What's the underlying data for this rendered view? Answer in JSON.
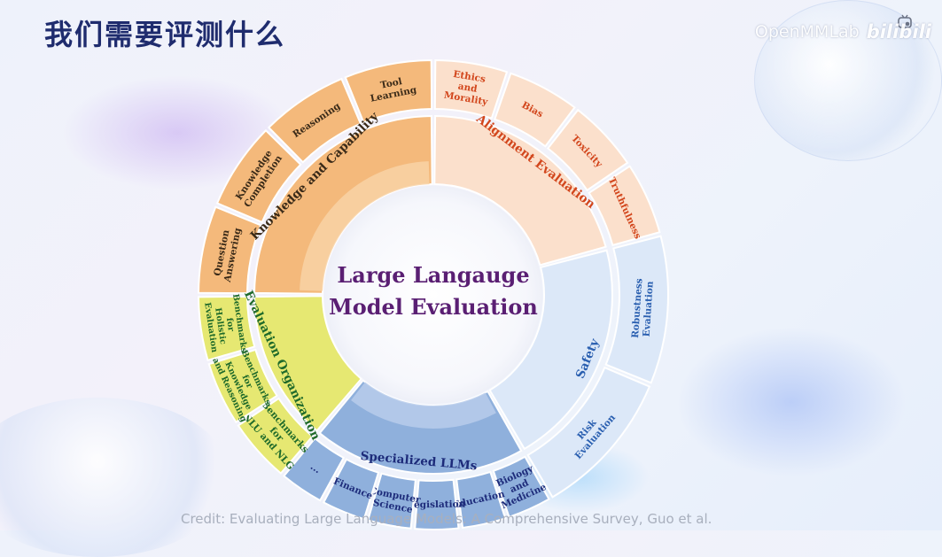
{
  "title": "我们需要评测什么",
  "watermark": {
    "org": "OpenMMLab",
    "site": "bilibili"
  },
  "credit": "Credit: Evaluating Large Language Models: A Comprehensive Survey, Guo et al.",
  "center": {
    "line1": "Large Langauge",
    "line2": "Model Evaluation"
  },
  "colors": {
    "orange": "#f4b97b",
    "orange_text": "#3a2a18",
    "peach": "#fbe0cc",
    "peach_text": "#d2461c",
    "blue_light": "#dce8f8",
    "blue_text": "#2a5fb0",
    "blue_mid": "#8fb0dc",
    "navy_text": "#1d2b7a",
    "yellow": "#e6e872",
    "green_text": "#1f6a2a",
    "center_text": "#5a1f73"
  },
  "categories": [
    {
      "id": "knowledge",
      "label": "Knowledge and Capability",
      "a0": 270,
      "a1": 360,
      "color": "#f4b97b",
      "text": "#3a2a18",
      "subs": [
        [
          "Question",
          "Answering"
        ],
        [
          "Knowledge",
          "Completion"
        ],
        [
          "Reasoning"
        ],
        [
          "Tool",
          "Learning"
        ]
      ]
    },
    {
      "id": "alignment",
      "label": "Alignment Evaluation",
      "a0": 0,
      "a1": 75,
      "color": "#fbe0cc",
      "text": "#d2461c",
      "subs": [
        [
          "Ethics",
          "and",
          "Morality"
        ],
        [
          "Bias"
        ],
        [
          "Toxicity"
        ],
        [
          "Truthfulness"
        ]
      ]
    },
    {
      "id": "safety",
      "label": "Safety",
      "a0": 75,
      "a1": 150,
      "color": "#dce8f8",
      "text": "#2a5fb0",
      "subs": [
        [
          "Robustness",
          "Evaluation"
        ],
        [
          "Risk",
          "Evaluation"
        ]
      ]
    },
    {
      "id": "specialized",
      "label": "Specialized LLMs",
      "a0": 150,
      "a1": 220,
      "color": "#8fb0dc",
      "text": "#1d2b7a",
      "subs": [
        [
          "Biology",
          "and",
          "Medicine"
        ],
        [
          "Education"
        ],
        [
          "Legislation"
        ],
        [
          "Computer",
          "Science"
        ],
        [
          "Finance"
        ],
        [
          "..."
        ]
      ]
    },
    {
      "id": "organization",
      "label": "Evaluation Organization",
      "a0": 220,
      "a1": 270,
      "color": "#e6e872",
      "text": "#1f6a2a",
      "subs": [
        [
          "Benchmarks",
          "for",
          "NLU and NLG"
        ],
        [
          "Benchmarks",
          "for",
          "Knowledge",
          "and Reasoning"
        ],
        [
          "Benchmarks",
          "for",
          "Holistic",
          "Evaluation"
        ]
      ]
    }
  ]
}
